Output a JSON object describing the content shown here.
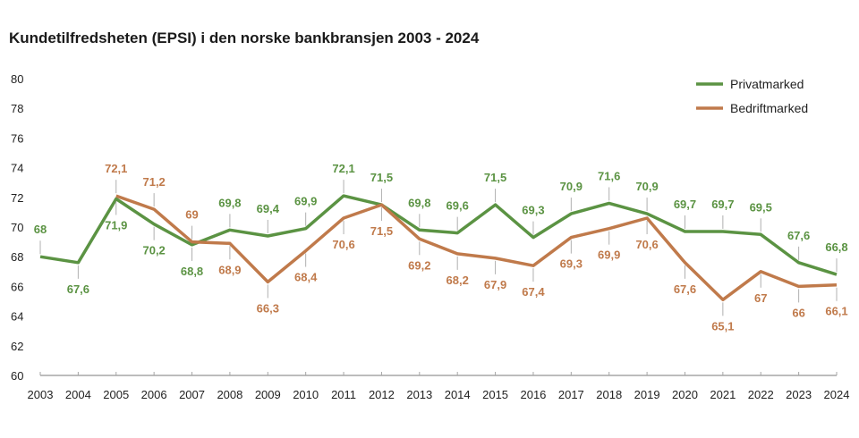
{
  "chart_data": {
    "type": "line",
    "title": "Kundetilfredsheten (EPSI) i den norske bankbransjen 2003 - 2024",
    "xlabel": "",
    "ylabel": "",
    "ylim": [
      60,
      80
    ],
    "yticks": [
      60,
      62,
      64,
      66,
      68,
      70,
      72,
      74,
      76,
      78,
      80
    ],
    "x": [
      "2003",
      "2004",
      "2005",
      "2006",
      "2007",
      "2008",
      "2009",
      "2010",
      "2011",
      "2012",
      "2013",
      "2014",
      "2015",
      "2016",
      "2017",
      "2018",
      "2019",
      "2020",
      "2021",
      "2022",
      "2023",
      "2024"
    ],
    "grid": false,
    "legend_position": "top-right",
    "series": [
      {
        "name": "Privatmarked",
        "color": "#5b9343",
        "values": [
          68,
          67.6,
          71.9,
          70.2,
          68.8,
          69.8,
          69.4,
          69.9,
          72.1,
          71.5,
          69.8,
          69.6,
          71.5,
          69.3,
          70.9,
          71.6,
          70.9,
          69.7,
          69.7,
          69.5,
          67.6,
          66.8
        ],
        "labels": [
          "68",
          "67,6",
          "71,9",
          "70,2",
          "68,8",
          "69,8",
          "69,4",
          "69,9",
          "72,1",
          "71,5",
          "69,8",
          "69,6",
          "71,5",
          "69,3",
          "70,9",
          "71,6",
          "70,9",
          "69,7",
          "69,7",
          "69,5",
          "67,6",
          "66,8"
        ],
        "label_pos": [
          "above",
          "below",
          "below",
          "below",
          "below",
          "above",
          "above",
          "above",
          "above",
          "above",
          "above",
          "above",
          "above",
          "above",
          "above",
          "above",
          "above",
          "above",
          "above",
          "above",
          "above",
          "above"
        ]
      },
      {
        "name": "Bedriftmarked",
        "color": "#c07a4b",
        "values": [
          null,
          null,
          72.1,
          71.2,
          69,
          68.9,
          66.3,
          68.4,
          70.6,
          71.5,
          69.2,
          68.2,
          67.9,
          67.4,
          69.3,
          69.9,
          70.6,
          67.6,
          65.1,
          67,
          66,
          66.1
        ],
        "labels": [
          null,
          null,
          "72,1",
          "71,2",
          "69",
          "68,9",
          "66,3",
          "68,4",
          "70,6",
          "71,5",
          "69,2",
          "68,2",
          "67,9",
          "67,4",
          "69,3",
          "69,9",
          "70,6",
          "67,6",
          "65,1",
          "67",
          "66",
          "66,1"
        ],
        "label_pos": [
          null,
          null,
          "above",
          "above",
          "above",
          "below",
          "below",
          "below",
          "below",
          "below",
          "below",
          "below",
          "below",
          "below",
          "below",
          "below",
          "below",
          "below",
          "below",
          "below",
          "below",
          "below"
        ]
      }
    ]
  }
}
